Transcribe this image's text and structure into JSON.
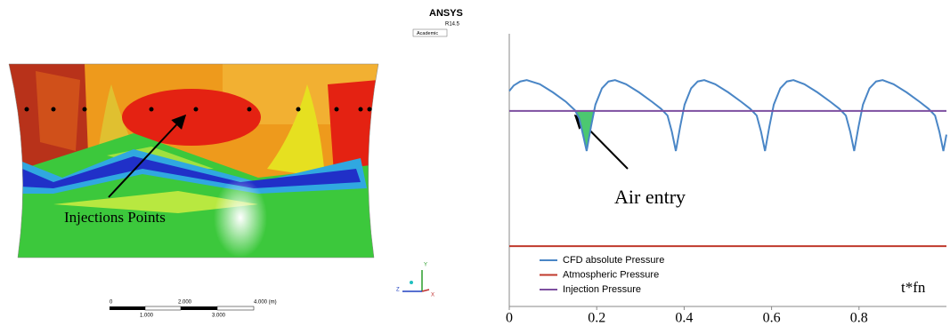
{
  "contour_panel": {
    "logo": {
      "brand": "ANSYS",
      "version": "R14.5",
      "edition": "Academic"
    },
    "annotation": "Injections Points",
    "scale_bar": {
      "top_labels": [
        "0",
        "2.000",
        "4.000 (m)"
      ],
      "bottom_labels": [
        "1.000",
        "3.000"
      ]
    },
    "axes_triad": [
      "Y",
      "Z",
      "X"
    ]
  },
  "chart_data": {
    "type": "line",
    "x_label": "t*fn",
    "annotation": "Air entry",
    "xlim": [
      0,
      1
    ],
    "xticks": [
      0,
      0.2,
      0.4,
      0.6,
      0.8
    ],
    "ylim": [
      0,
      1
    ],
    "legend": "lower left",
    "shade_color": "#4cc870",
    "series": [
      {
        "name": "CFD absolute Pressure",
        "color": "#4a86c6",
        "x": [
          0,
          0.01,
          0.025,
          0.04,
          0.07,
          0.1,
          0.13,
          0.15,
          0.16,
          0.17,
          0.177,
          0.187,
          0.197,
          0.212,
          0.227,
          0.242,
          0.267,
          0.297,
          0.327,
          0.347,
          0.362,
          0.372,
          0.381,
          0.391,
          0.401,
          0.416,
          0.431,
          0.446,
          0.471,
          0.501,
          0.531,
          0.551,
          0.566,
          0.576,
          0.585,
          0.595,
          0.605,
          0.62,
          0.635,
          0.65,
          0.675,
          0.705,
          0.735,
          0.755,
          0.77,
          0.78,
          0.789,
          0.799,
          0.809,
          0.824,
          0.839,
          0.854,
          0.879,
          0.909,
          0.939,
          0.959,
          0.974,
          0.984,
          0.993,
          1.0
        ],
        "values": [
          0.79,
          0.81,
          0.825,
          0.83,
          0.815,
          0.785,
          0.75,
          0.72,
          0.69,
          0.62,
          0.57,
          0.66,
          0.74,
          0.8,
          0.825,
          0.83,
          0.815,
          0.785,
          0.75,
          0.725,
          0.7,
          0.64,
          0.57,
          0.66,
          0.74,
          0.8,
          0.825,
          0.83,
          0.815,
          0.785,
          0.75,
          0.725,
          0.7,
          0.64,
          0.57,
          0.66,
          0.74,
          0.8,
          0.825,
          0.83,
          0.815,
          0.785,
          0.75,
          0.725,
          0.7,
          0.64,
          0.57,
          0.66,
          0.74,
          0.8,
          0.825,
          0.83,
          0.815,
          0.785,
          0.75,
          0.725,
          0.7,
          0.64,
          0.57,
          0.63
        ]
      },
      {
        "name": "Atmospheric Pressure",
        "color": "#c0392b",
        "x": [
          0,
          1
        ],
        "values": [
          0.221,
          0.221
        ]
      },
      {
        "name": "Injection Pressure",
        "color": "#7d4fa0",
        "x": [
          0,
          1
        ],
        "values": [
          0.717,
          0.717
        ]
      }
    ]
  }
}
